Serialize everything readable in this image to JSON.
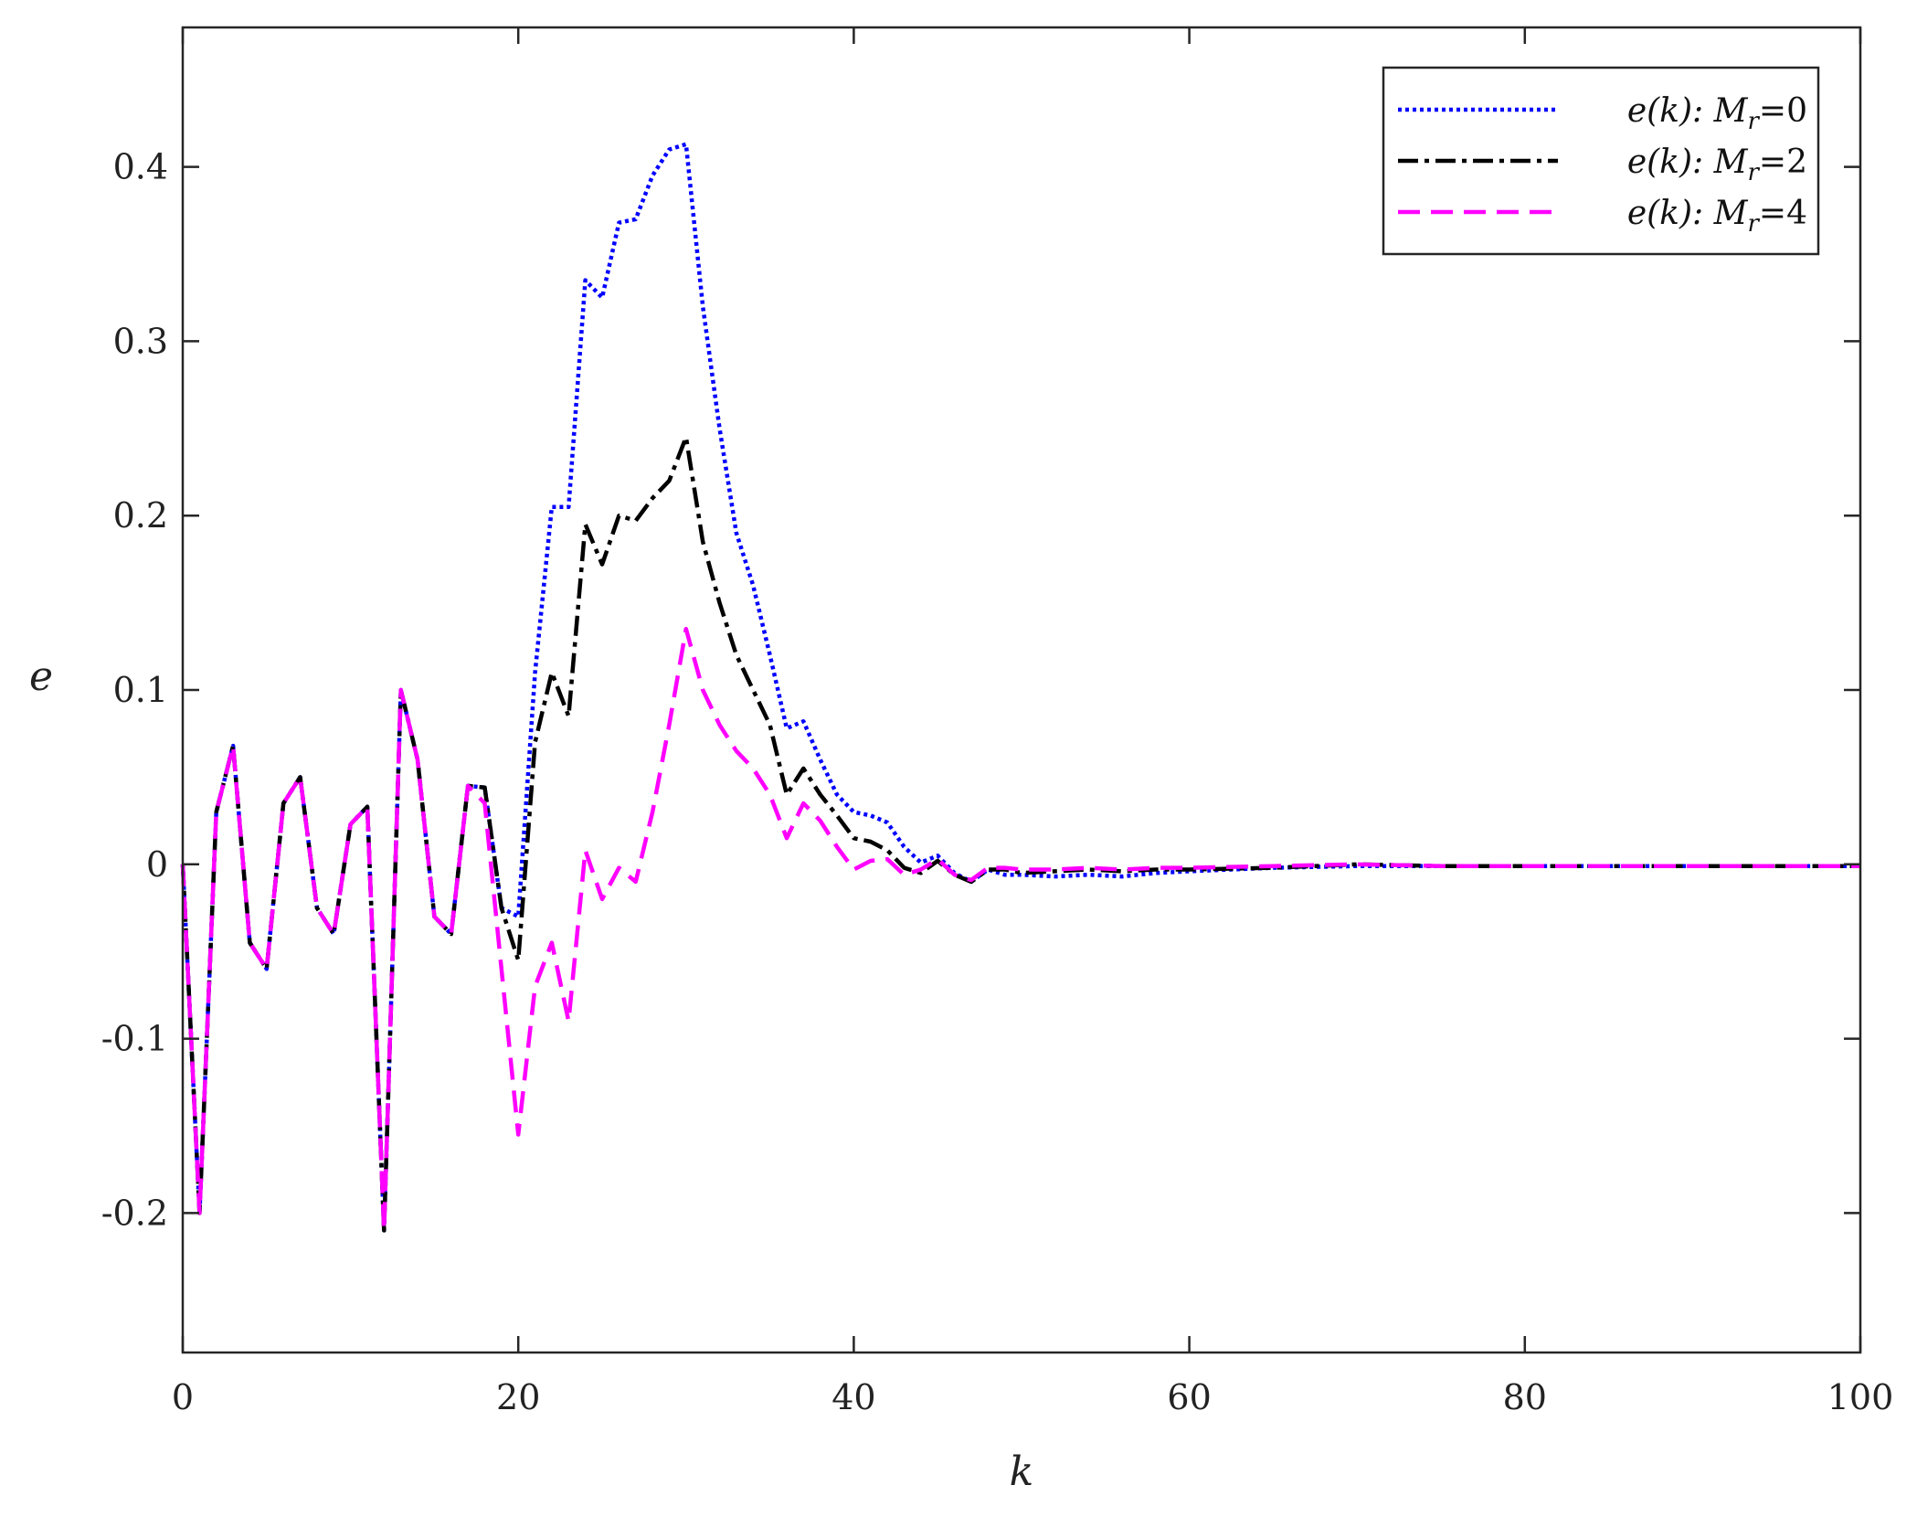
{
  "chart_data": {
    "type": "line",
    "xlabel": "k",
    "ylabel": "e",
    "xlim": [
      0,
      100
    ],
    "ylim": [
      -0.28,
      0.48
    ],
    "xticks": [
      0,
      20,
      40,
      60,
      80,
      100
    ],
    "xtick_labels": [
      "0",
      "20",
      "40",
      "60",
      "80",
      "100"
    ],
    "yticks": [
      -0.2,
      -0.1,
      0,
      0.1,
      0.2,
      0.3,
      0.4
    ],
    "ytick_labels": [
      "-0.2",
      "-0.1",
      "0",
      "0.1",
      "0.2",
      "0.3",
      "0.4"
    ],
    "grid": false,
    "legend_position": "top-right",
    "x": [
      0,
      1,
      2,
      3,
      4,
      5,
      6,
      7,
      8,
      9,
      10,
      11,
      12,
      13,
      14,
      15,
      16,
      17,
      18,
      19,
      20,
      21,
      22,
      23,
      24,
      25,
      26,
      27,
      28,
      29,
      30,
      31,
      32,
      33,
      34,
      35,
      36,
      37,
      38,
      39,
      40,
      41,
      42,
      43,
      44,
      45,
      46,
      47,
      48,
      49,
      50,
      52,
      54,
      56,
      58,
      60,
      65,
      70,
      75,
      80,
      85,
      90,
      95,
      100
    ],
    "series": [
      {
        "name": "e(k):  Mr=0",
        "legend_prefix": "e(k):",
        "legend_symbol": "M",
        "legend_subscript": "r",
        "legend_value": "=0",
        "color": "#0000ff",
        "dash": "dotted",
        "values": [
          0,
          -0.2,
          0.03,
          0.068,
          -0.045,
          -0.06,
          0.035,
          0.05,
          -0.025,
          -0.04,
          0.023,
          0.033,
          -0.21,
          0.1,
          0.06,
          -0.03,
          -0.04,
          0.045,
          0.044,
          -0.025,
          -0.03,
          0.11,
          0.205,
          0.205,
          0.335,
          0.325,
          0.368,
          0.37,
          0.395,
          0.41,
          0.413,
          0.32,
          0.25,
          0.19,
          0.16,
          0.12,
          0.078,
          0.082,
          0.06,
          0.04,
          0.03,
          0.028,
          0.024,
          0.01,
          0.001,
          0.005,
          -0.005,
          -0.01,
          -0.003,
          -0.006,
          -0.006,
          -0.007,
          -0.006,
          -0.007,
          -0.005,
          -0.004,
          -0.002,
          -0.001,
          -0.001,
          -0.001,
          -0.001,
          -0.001,
          -0.001,
          -0.001
        ]
      },
      {
        "name": "e(k):  Mr=2",
        "legend_prefix": "e(k):",
        "legend_symbol": "M",
        "legend_subscript": "r",
        "legend_value": "=2",
        "color": "#000000",
        "dash": "dashdot",
        "values": [
          0,
          -0.2,
          0.03,
          0.068,
          -0.045,
          -0.06,
          0.035,
          0.05,
          -0.025,
          -0.04,
          0.023,
          0.033,
          -0.21,
          0.1,
          0.06,
          -0.03,
          -0.04,
          0.045,
          0.044,
          -0.025,
          -0.055,
          0.07,
          0.11,
          0.085,
          0.195,
          0.172,
          0.2,
          0.197,
          0.21,
          0.22,
          0.245,
          0.185,
          0.15,
          0.12,
          0.1,
          0.08,
          0.04,
          0.055,
          0.04,
          0.028,
          0.015,
          0.013,
          0.008,
          -0.002,
          -0.005,
          0.002,
          -0.006,
          -0.01,
          -0.003,
          -0.003,
          -0.005,
          -0.004,
          -0.003,
          -0.004,
          -0.003,
          -0.003,
          -0.002,
          0,
          -0.001,
          -0.001,
          -0.001,
          -0.001,
          -0.001,
          -0.001
        ]
      },
      {
        "name": "e(k):  Mr=4",
        "legend_prefix": "e(k):",
        "legend_symbol": "M",
        "legend_subscript": "r",
        "legend_value": "=4",
        "color": "#ff00ff",
        "dash": "dashed",
        "values": [
          0,
          -0.2,
          0.03,
          0.068,
          -0.045,
          -0.06,
          0.035,
          0.05,
          -0.025,
          -0.04,
          0.023,
          0.033,
          -0.21,
          0.1,
          0.06,
          -0.03,
          -0.04,
          0.045,
          0.035,
          -0.06,
          -0.155,
          -0.07,
          -0.045,
          -0.09,
          0.008,
          -0.02,
          -0.002,
          -0.01,
          0.03,
          0.08,
          0.135,
          0.1,
          0.08,
          0.065,
          0.055,
          0.04,
          0.015,
          0.035,
          0.025,
          0.01,
          -0.003,
          0.002,
          0.003,
          -0.006,
          -0.003,
          0.003,
          -0.006,
          -0.009,
          -0.002,
          -0.002,
          -0.003,
          -0.003,
          -0.002,
          -0.003,
          -0.002,
          -0.002,
          -0.001,
          0,
          -0.001,
          -0.001,
          -0.001,
          -0.001,
          -0.001,
          -0.001
        ]
      }
    ]
  }
}
